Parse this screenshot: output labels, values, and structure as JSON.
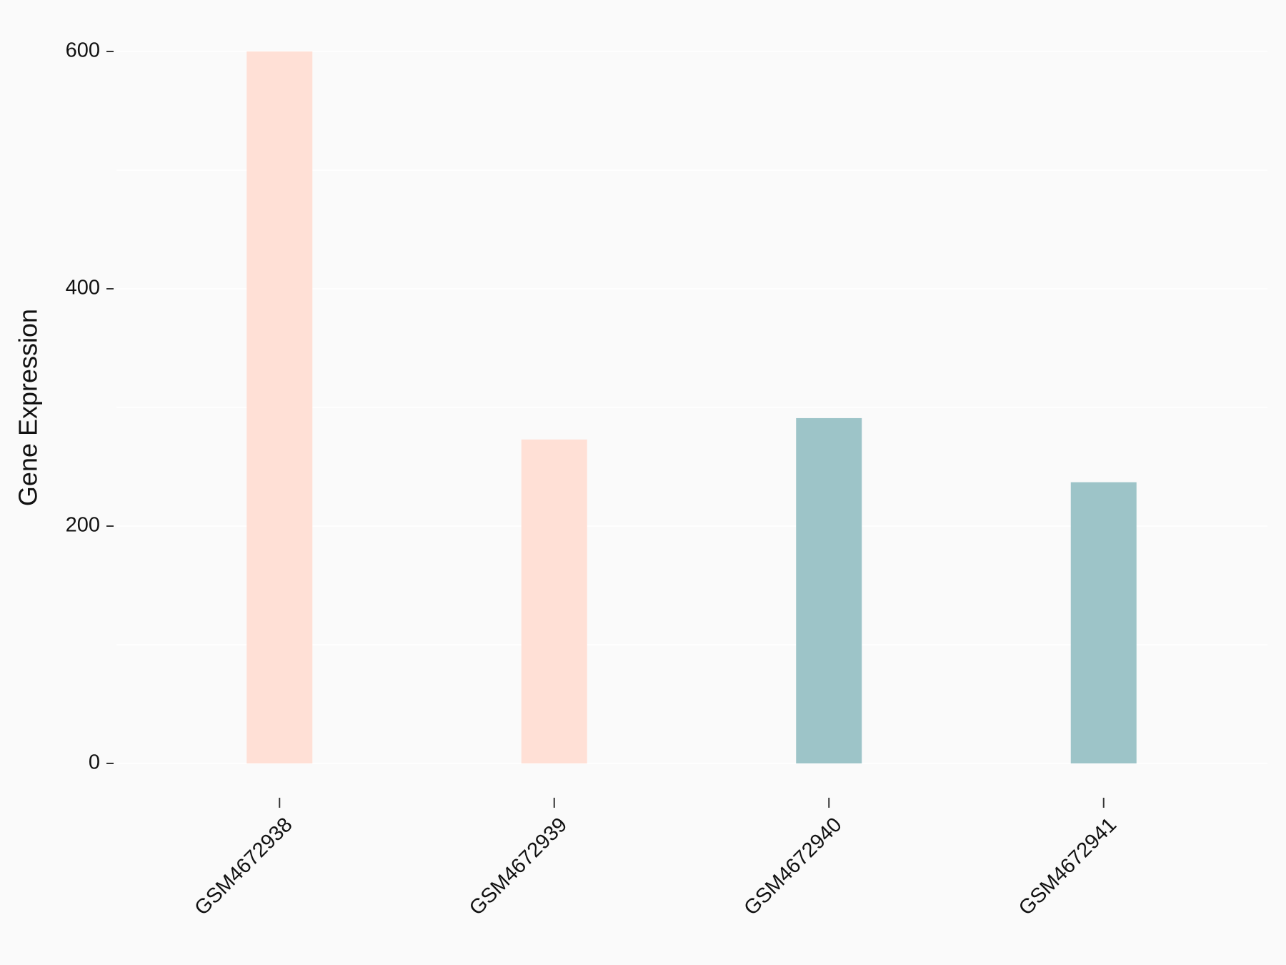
{
  "chart_data": {
    "type": "bar",
    "ylabel": "Gene Expression",
    "categories": [
      "GSM4672938",
      "GSM4672939",
      "GSM4672940",
      "GSM4672941"
    ],
    "values": [
      600,
      273,
      291,
      237
    ],
    "colors": [
      "#ffe0d6",
      "#ffe0d6",
      "#9dc4c8",
      "#9dc4c8"
    ],
    "ylim": [
      0,
      600
    ],
    "yticks": [
      0,
      200,
      400,
      600
    ],
    "minor_yticks": [
      100,
      300,
      500
    ],
    "grid": true
  }
}
